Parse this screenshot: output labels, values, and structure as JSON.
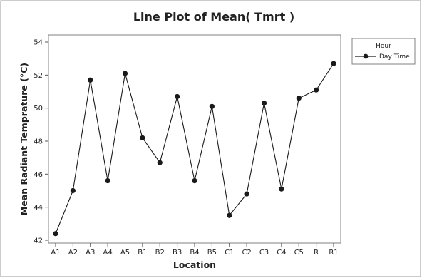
{
  "chart_data": {
    "type": "line",
    "title": "Line Plot of Mean( Tmrt )",
    "xlabel": "Location",
    "ylabel": "Mean Radiant Temprature (°C)",
    "categories": [
      "A1",
      "A2",
      "A3",
      "A4",
      "A5",
      "B1",
      "B2",
      "B3",
      "B4",
      "B5",
      "C1",
      "C2",
      "C3",
      "C4",
      "C5",
      "R",
      "R1"
    ],
    "series": [
      {
        "name": "Day Time",
        "values": [
          42.4,
          45.0,
          51.7,
          45.6,
          52.1,
          48.2,
          46.7,
          50.7,
          45.6,
          50.1,
          43.5,
          44.8,
          50.3,
          45.1,
          50.6,
          51.1,
          52.7
        ]
      }
    ],
    "ylim": [
      42,
      54
    ],
    "yticks": [
      "42",
      "44",
      "46",
      "48",
      "50",
      "52",
      "54"
    ],
    "legend": {
      "title": "Hour",
      "placement": "right"
    },
    "grid": false,
    "colors": {
      "line": "#1a1a1a",
      "marker": "#1a1a1a",
      "frame": "#808080"
    }
  }
}
